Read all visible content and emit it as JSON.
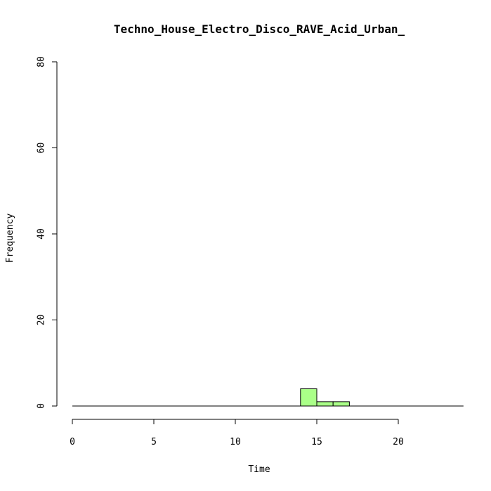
{
  "chart_data": {
    "type": "bar",
    "title": "Techno_House_Electro_Disco_RAVE_Acid_Urban_",
    "xlabel": "Time",
    "ylabel": "Frequency",
    "xlim": [
      0,
      24
    ],
    "ylim": [
      0,
      80
    ],
    "x_ticks": [
      0,
      5,
      10,
      15,
      20
    ],
    "y_ticks": [
      0,
      20,
      40,
      60,
      80
    ],
    "bin_width": 1,
    "bin_start": 0,
    "bin_end": 24,
    "bins": [
      {
        "x0": 14,
        "x1": 15,
        "value": 4
      },
      {
        "x0": 15,
        "x1": 16,
        "value": 1
      },
      {
        "x0": 16,
        "x1": 17,
        "value": 1
      }
    ],
    "bar_color": "#aaff88",
    "grid": false,
    "legend": "none"
  }
}
